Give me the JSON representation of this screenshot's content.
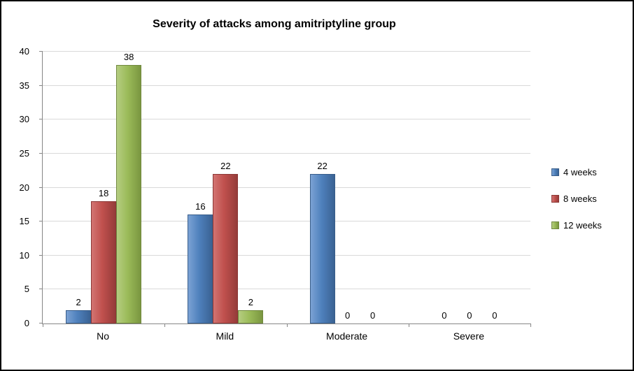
{
  "chart_data": {
    "type": "bar",
    "title": "Severity of attacks among amitriptyline group",
    "categories": [
      "No",
      "Mild",
      "Moderate",
      "Severe"
    ],
    "series": [
      {
        "name": "4 weeks",
        "values": [
          2,
          16,
          22,
          0
        ],
        "color": "#4F81BD",
        "color_light": "#7BA2D4",
        "color_dark": "#3A6293",
        "border": "#385D8A"
      },
      {
        "name": "8 weeks",
        "values": [
          18,
          22,
          0,
          0
        ],
        "color": "#C0504D",
        "color_light": "#D27472",
        "color_dark": "#953C3A",
        "border": "#8C3836"
      },
      {
        "name": "12 weeks",
        "values": [
          38,
          2,
          0,
          0
        ],
        "color": "#9BBB59",
        "color_light": "#B5CD81",
        "color_dark": "#7A9640",
        "border": "#71893F"
      }
    ],
    "ylim": [
      0,
      40
    ],
    "ytick_step": 5,
    "yticks": [
      0,
      5,
      10,
      15,
      20,
      25,
      30,
      35,
      40
    ],
    "grid": true,
    "legend_position": "right",
    "data_labels": true
  }
}
